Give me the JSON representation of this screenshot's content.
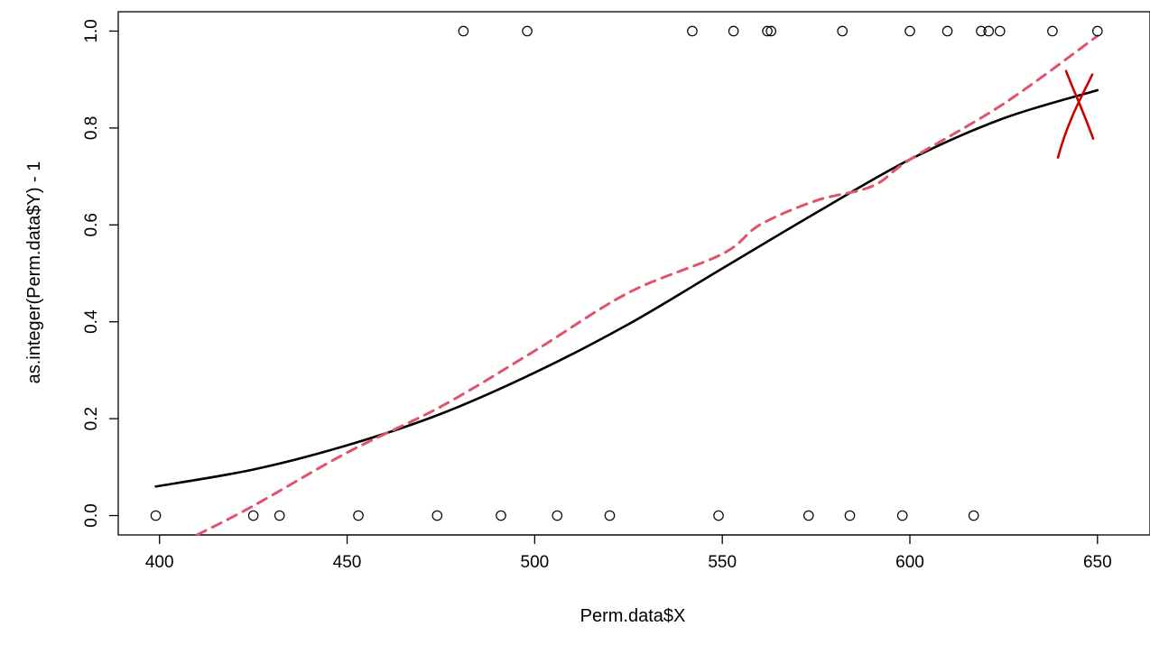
{
  "chart_data": {
    "type": "scatter",
    "title": "",
    "xlabel": "Perm.data$X",
    "ylabel": "as.integer(Perm.data$Y) - 1",
    "xlim": [
      389,
      664
    ],
    "ylim": [
      -0.04,
      1.04
    ],
    "x_ticks": [
      400,
      450,
      500,
      550,
      600,
      650
    ],
    "x_tick_labels": [
      "400",
      "450",
      "500",
      "550",
      "600",
      "650"
    ],
    "y_ticks": [
      0.0,
      0.2,
      0.4,
      0.6,
      0.8,
      1.0
    ],
    "y_tick_labels": [
      "0.0",
      "0.2",
      "0.4",
      "0.6",
      "0.8",
      "1.0"
    ],
    "grid": false,
    "points": [
      {
        "x": 399,
        "y": 0
      },
      {
        "x": 425,
        "y": 0
      },
      {
        "x": 432,
        "y": 0
      },
      {
        "x": 453,
        "y": 0
      },
      {
        "x": 474,
        "y": 0
      },
      {
        "x": 491,
        "y": 0
      },
      {
        "x": 506,
        "y": 0
      },
      {
        "x": 520,
        "y": 0
      },
      {
        "x": 549,
        "y": 0
      },
      {
        "x": 573,
        "y": 0
      },
      {
        "x": 584,
        "y": 0
      },
      {
        "x": 598,
        "y": 0
      },
      {
        "x": 617,
        "y": 0
      },
      {
        "x": 481,
        "y": 1
      },
      {
        "x": 498,
        "y": 1
      },
      {
        "x": 542,
        "y": 1
      },
      {
        "x": 553,
        "y": 1
      },
      {
        "x": 562,
        "y": 1
      },
      {
        "x": 563,
        "y": 1
      },
      {
        "x": 582,
        "y": 1
      },
      {
        "x": 600,
        "y": 1
      },
      {
        "x": 610,
        "y": 1
      },
      {
        "x": 619,
        "y": 1
      },
      {
        "x": 621,
        "y": 1
      },
      {
        "x": 624,
        "y": 1
      },
      {
        "x": 638,
        "y": 1
      },
      {
        "x": 650,
        "y": 1
      }
    ],
    "series": [
      {
        "style": "solid",
        "color": "#000000",
        "x": [
          399,
          425,
          450,
          475,
          500,
          525,
          550,
          575,
          600,
          625,
          650
        ],
        "y": [
          0.06,
          0.095,
          0.145,
          0.21,
          0.295,
          0.395,
          0.51,
          0.625,
          0.735,
          0.82,
          0.878
        ]
      },
      {
        "style": "dashed",
        "color": "#DF536B",
        "x": [
          410,
          425,
          450,
          475,
          500,
          525,
          550,
          560,
          575,
          590,
          600,
          625,
          650
        ],
        "y": [
          -0.04,
          0.02,
          0.13,
          0.225,
          0.34,
          0.46,
          0.54,
          0.6,
          0.65,
          0.68,
          0.735,
          0.85,
          0.99
        ]
      }
    ],
    "annotations": [
      {
        "type": "hand-drawn-x-mark",
        "color": "#CC0000",
        "x": 645,
        "y": 0.86
      }
    ]
  }
}
